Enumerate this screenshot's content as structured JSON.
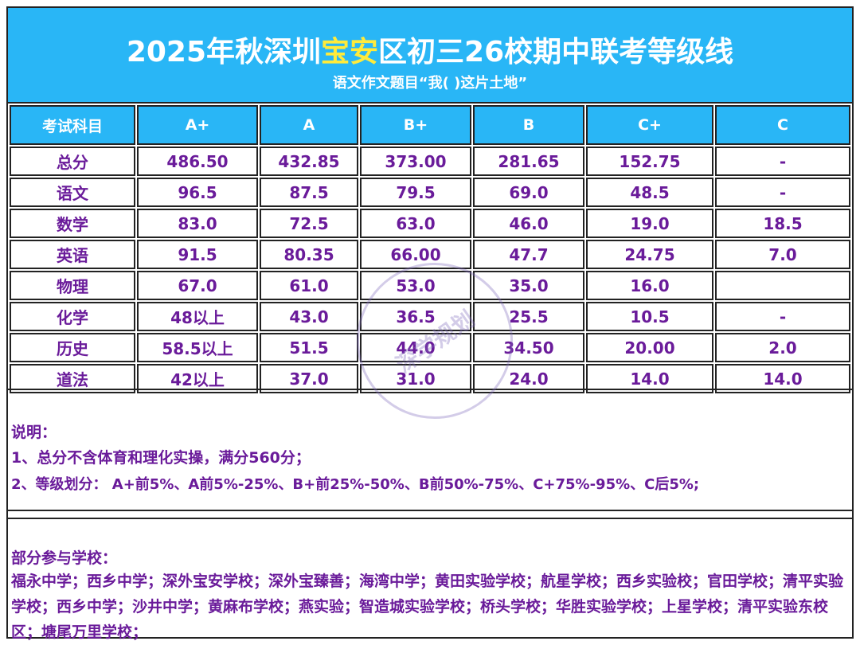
{
  "title": {
    "prefix": "2025年秋深圳",
    "highlight": "宝安",
    "suffix": "区初三26校期中联考等级线",
    "subtitle": "语文作文题目“我(    )这片土地”"
  },
  "table": {
    "headers": [
      "考试科目",
      "A+",
      "A",
      "B+",
      "B",
      "C+",
      "C"
    ],
    "rows": [
      [
        "总分",
        "486.50",
        "432.85",
        "373.00",
        "281.65",
        "152.75",
        "-"
      ],
      [
        "语文",
        "96.5",
        "87.5",
        "79.5",
        "69.0",
        "48.5",
        "-"
      ],
      [
        "数学",
        "83.0",
        "72.5",
        "63.0",
        "46.0",
        "19.0",
        "18.5"
      ],
      [
        "英语",
        "91.5",
        "80.35",
        "66.00",
        "47.7",
        "24.75",
        "7.0"
      ],
      [
        "物理",
        "67.0",
        "61.0",
        "53.0",
        "35.0",
        "16.0",
        ""
      ],
      [
        "化学",
        "48以上",
        "43.0",
        "36.5",
        "25.5",
        "10.5",
        "-"
      ],
      [
        "历史",
        "58.5以上",
        "51.5",
        "44.0",
        "34.50",
        "20.00",
        "2.0"
      ],
      [
        "道法",
        "42以上",
        "37.0",
        "31.0",
        "24.0",
        "14.0",
        "14.0"
      ]
    ]
  },
  "notes": {
    "heading": "说明：",
    "line1": "1、总分不含体育和理化实操，满分560分；",
    "line2": "2、等级划分： A+前5%、A前5%-25%、B+前25%-50%、B前50%-75%、C+75%-95%、C后5%;"
  },
  "schools": {
    "heading": "部分参与学校：",
    "list": "福永中学；西乡中学；深外宝安学校；深外宝臻善；海湾中学；黄田实验学校；航星学校；西乡实验校；官田学校；清平实验学校；西乡中学；沙井中学；黄麻布学校；燕实验；智造城实验学校；桥头学校；华胜实验学校；上星学校；清平实验东校区；塘尾万里学校；"
  },
  "watermark": "深学规划",
  "colors": {
    "header_bg": "#29b6f6",
    "title_highlight": "#ffeb3b",
    "value_text": "#6a1b9a"
  }
}
